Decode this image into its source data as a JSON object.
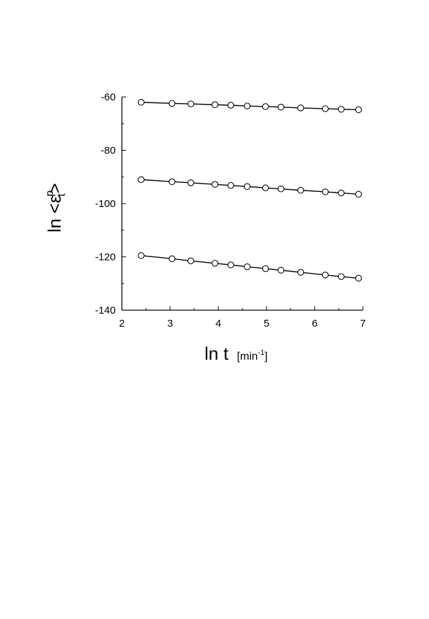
{
  "chart_data": {
    "type": "line",
    "xlabel": "ln t",
    "xlabel_unit": "[min",
    "xlabel_unit_sup": "-1",
    "xlabel_unit_close": "]",
    "ylabel_prefix": "ln <ε",
    "ylabel_sup": "p",
    "ylabel_sub": "t",
    "ylabel_suffix": ">",
    "xlim": [
      2,
      7
    ],
    "ylim": [
      -140,
      -60
    ],
    "x_ticks": [
      2,
      3,
      4,
      5,
      6,
      7
    ],
    "y_ticks": [
      -60,
      -80,
      -100,
      -120,
      -140
    ],
    "grid": false,
    "marker": "open-circle",
    "colors": {
      "line": "#000000",
      "marker_fill": "#ffffff"
    },
    "x": [
      2.4,
      3.04,
      3.43,
      3.93,
      4.26,
      4.6,
      4.98,
      5.3,
      5.71,
      6.22,
      6.55,
      6.91
    ],
    "series": [
      {
        "values": [
          -62.0,
          -62.4,
          -62.6,
          -62.9,
          -63.1,
          -63.4,
          -63.6,
          -63.8,
          -64.1,
          -64.4,
          -64.6,
          -64.8
        ]
      },
      {
        "values": [
          -91.0,
          -91.8,
          -92.2,
          -92.8,
          -93.2,
          -93.6,
          -94.1,
          -94.5,
          -95.0,
          -95.6,
          -96.0,
          -96.5
        ]
      },
      {
        "values": [
          -119.5,
          -120.7,
          -121.5,
          -122.4,
          -123.0,
          -123.7,
          -124.4,
          -125.0,
          -125.8,
          -126.8,
          -127.4,
          -128.0
        ]
      }
    ]
  }
}
